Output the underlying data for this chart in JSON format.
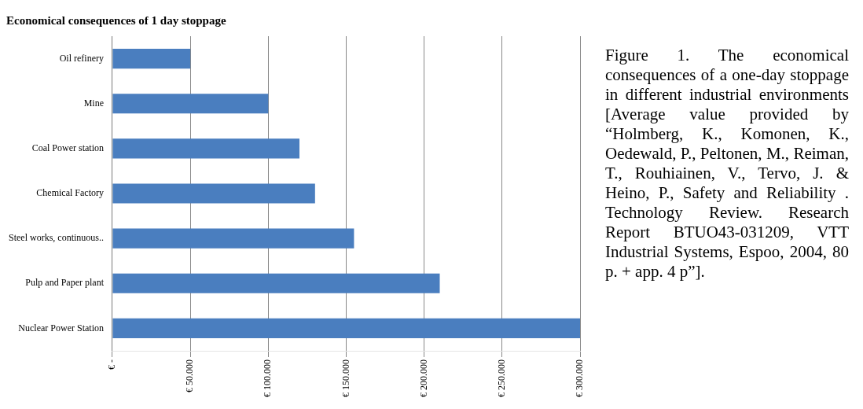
{
  "chart_data": {
    "type": "bar",
    "orientation": "horizontal",
    "title": "Economical consequences of 1 day stoppage",
    "categories": [
      "Oil refinery",
      "Mine",
      "Coal Power station",
      "Chemical Factory",
      "Steel works, continuous..",
      "Pulp and Paper plant",
      "Nuclear Power Station"
    ],
    "values": [
      50000,
      100000,
      120000,
      130000,
      155000,
      210000,
      300000
    ],
    "color": "#4a7ebf",
    "xlim": [
      0,
      300000
    ],
    "xticks": [
      {
        "value": 0,
        "label": "€ -"
      },
      {
        "value": 50000,
        "label": "€ 50.000"
      },
      {
        "value": 100000,
        "label": "€ 100.000"
      },
      {
        "value": 150000,
        "label": "€ 150.000"
      },
      {
        "value": 200000,
        "label": "€ 200.000"
      },
      {
        "value": 250000,
        "label": "€ 250.000"
      },
      {
        "value": 300000,
        "label": "€ 300.000"
      }
    ],
    "grid": "x",
    "legend": false,
    "annotations": [
      "Figure 1. The economical consequences of a one-day stoppage in different industrial environments [Average value provided by “Holmberg, K., Komonen, K., Oedewald, P., Peltonen, M., Reiman, T., Rouhiainen, V., Tervo, J. & Heino, P., Safety and Reliability . Technology Review. Research Report BTUO43-031209, VTT Industrial Systems, Espoo, 2004, 80 p. + app. 4 p”]."
    ]
  }
}
